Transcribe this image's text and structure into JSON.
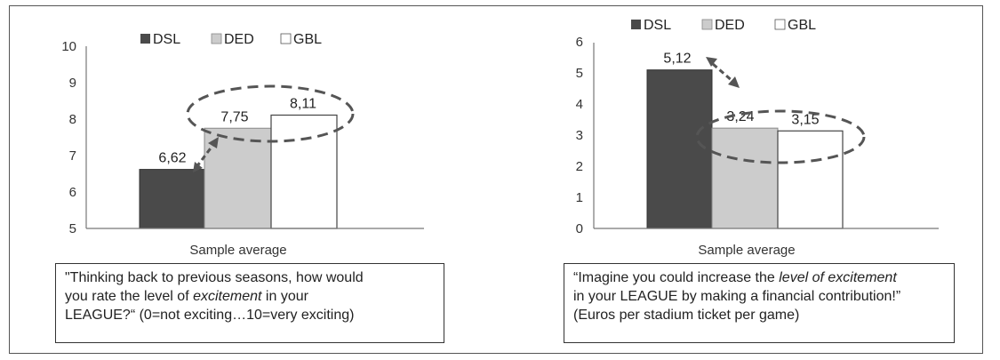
{
  "chart_data": [
    {
      "type": "bar",
      "categories": [
        "Sample average"
      ],
      "series": [
        {
          "name": "DSL",
          "values": [
            6.62
          ],
          "label": "6,62",
          "color": "#4a4a4a"
        },
        {
          "name": "DED",
          "values": [
            7.75
          ],
          "label": "7,75",
          "color": "#cccccc"
        },
        {
          "name": "GBL",
          "values": [
            8.11
          ],
          "label": "8,11",
          "color": "#ffffff"
        }
      ],
      "ylim": [
        5,
        10
      ],
      "yticks": [
        "5",
        "6",
        "7",
        "8",
        "9",
        "10"
      ],
      "xlabel": "Sample average",
      "legend": "top",
      "grid": false,
      "caption": {
        "line1": "\"Thinking back to previous seasons, how would",
        "line2_before": "you rate the level of ",
        "line2_em": "excitement",
        "line2_after": " in your",
        "line3": "LEAGUE?“ (0=not exciting…10=very exciting)"
      }
    },
    {
      "type": "bar",
      "categories": [
        "Sample average"
      ],
      "series": [
        {
          "name": "DSL",
          "values": [
            5.12
          ],
          "label": "5,12",
          "color": "#4a4a4a"
        },
        {
          "name": "DED",
          "values": [
            3.24
          ],
          "label": "3,24",
          "color": "#cccccc"
        },
        {
          "name": "GBL",
          "values": [
            3.15
          ],
          "label": "3,15",
          "color": "#ffffff"
        }
      ],
      "ylim": [
        0,
        6
      ],
      "yticks": [
        "0",
        "1",
        "2",
        "3",
        "4",
        "5",
        "6"
      ],
      "xlabel": "Sample average",
      "legend": "top",
      "grid": false,
      "caption": {
        "line1_before": "“Imagine you could increase the ",
        "line1_em": "level of excitement",
        "line2": "in your LEAGUE by making a financial contribution!”",
        "line3": "(Euros per stadium ticket per game)"
      }
    }
  ]
}
